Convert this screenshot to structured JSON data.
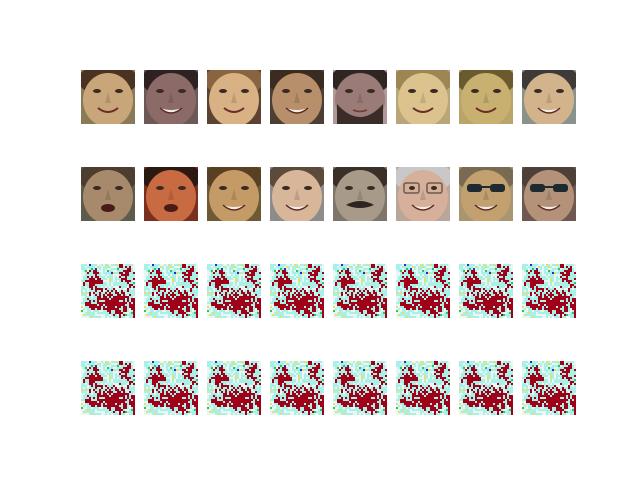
{
  "figure": {
    "rows": [
      {
        "kind": "face-photos",
        "tiles": [
          {
            "name": "face-photo-1-1",
            "skin": "#c9a57a",
            "hair": "#4a3320",
            "bg": "#8a7a58",
            "mouth": "smile"
          },
          {
            "name": "face-photo-1-2",
            "skin": "#8c6a68",
            "hair": "#2d2221",
            "bg": "#6c5957",
            "mouth": "teeth"
          },
          {
            "name": "face-photo-1-3",
            "skin": "#d8b184",
            "hair": "#8a6440",
            "bg": "#5c4230",
            "mouth": "smile"
          },
          {
            "name": "face-photo-1-4",
            "skin": "#b78f6a",
            "hair": "#3b2c22",
            "bg": "#4c3e33",
            "mouth": "teeth"
          },
          {
            "name": "face-photo-1-5",
            "skin": "#9b7b78",
            "hair": "#2f2523",
            "bg": "#b09a98",
            "mouth": "beard"
          },
          {
            "name": "face-photo-1-6",
            "skin": "#dcc28c",
            "hair": "#9d8556",
            "bg": "#b8a57a",
            "mouth": "smile"
          },
          {
            "name": "face-photo-1-7",
            "skin": "#c8b070",
            "hair": "#6b5a2e",
            "bg": "#b9a56a",
            "mouth": "smile"
          },
          {
            "name": "face-photo-1-8",
            "skin": "#d3b38c",
            "hair": "#3e3a38",
            "bg": "#8a928c",
            "mouth": "teeth"
          }
        ]
      },
      {
        "kind": "face-photos",
        "tiles": [
          {
            "name": "face-photo-2-1",
            "skin": "#a78a6c",
            "hair": "#4c3d2e",
            "bg": "#5e5a4c",
            "mouth": "open"
          },
          {
            "name": "face-photo-2-2",
            "skin": "#c86a42",
            "hair": "#2a1a12",
            "bg": "#7a3020",
            "mouth": "open"
          },
          {
            "name": "face-photo-2-3",
            "skin": "#c49a66",
            "hair": "#5a4022",
            "bg": "#6e5a32",
            "mouth": "teeth"
          },
          {
            "name": "face-photo-2-4",
            "skin": "#d8b69a",
            "hair": "#5c4a3a",
            "bg": "#8e8c8a",
            "mouth": "teeth"
          },
          {
            "name": "face-photo-2-5",
            "skin": "#a89a88",
            "hair": "#3a3028",
            "bg": "#7e766c",
            "mouth": "mustache"
          },
          {
            "name": "face-photo-2-6",
            "skin": "#d6b09a",
            "hair": "#c8c8c8",
            "bg": "#b8a698",
            "mouth": "glasses"
          },
          {
            "name": "face-photo-2-7",
            "skin": "#c2a070",
            "hair": "#7a6a52",
            "bg": "#a89670",
            "mouth": "sunglasses"
          },
          {
            "name": "face-photo-2-8",
            "skin": "#b4927a",
            "hair": "#4c4038",
            "bg": "#6e5850",
            "mouth": "sunglasses"
          }
        ]
      },
      {
        "kind": "noise-maps",
        "tiles": [
          {
            "name": "noise-map-3-1"
          },
          {
            "name": "noise-map-3-2"
          },
          {
            "name": "noise-map-3-3"
          },
          {
            "name": "noise-map-3-4"
          },
          {
            "name": "noise-map-3-5"
          },
          {
            "name": "noise-map-3-6"
          },
          {
            "name": "noise-map-3-7"
          },
          {
            "name": "noise-map-3-8"
          }
        ]
      },
      {
        "kind": "noise-maps",
        "tiles": [
          {
            "name": "noise-map-4-1"
          },
          {
            "name": "noise-map-4-2"
          },
          {
            "name": "noise-map-4-3"
          },
          {
            "name": "noise-map-4-4"
          },
          {
            "name": "noise-map-4-5"
          },
          {
            "name": "noise-map-4-6"
          },
          {
            "name": "noise-map-4-7"
          },
          {
            "name": "noise-map-4-8"
          }
        ]
      }
    ],
    "noise_palette": {
      "red": "#a00018",
      "cyan": "#a8f0e8",
      "white": "#e8f8f0",
      "yellow": "#e8e060",
      "blue": "#2030c0",
      "green": "#30c060"
    }
  }
}
